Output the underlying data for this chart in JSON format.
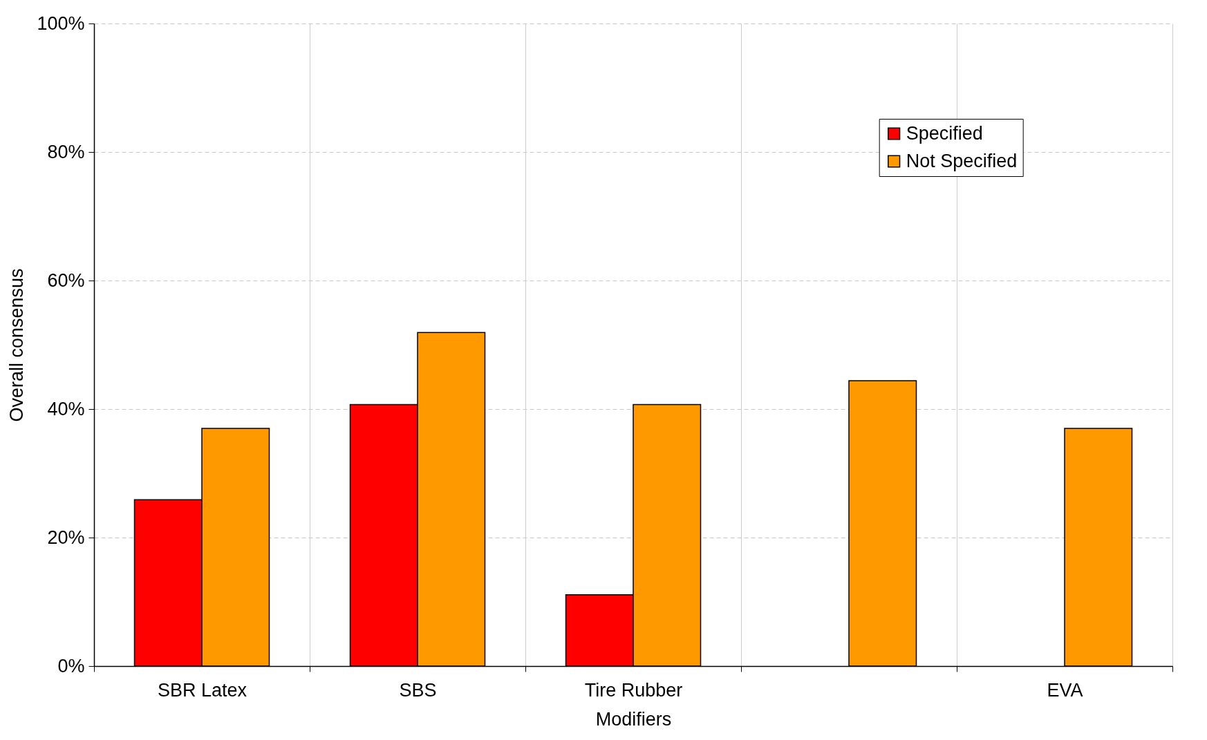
{
  "chart_data": {
    "type": "bar",
    "xlabel": "Modifiers",
    "ylabel": "Overall consensus",
    "categories": [
      "SBR Latex",
      "SBS",
      "Tire Rubber",
      null,
      "EVA"
    ],
    "series": [
      {
        "name": "Specified",
        "color": "#ff0000",
        "values": [
          25.9,
          40.7,
          11.1,
          null,
          null
        ]
      },
      {
        "name": "Not Specified",
        "color": "#ff9900",
        "values": [
          37.0,
          51.9,
          40.7,
          44.4,
          37.0
        ]
      }
    ],
    "ylim": [
      0,
      100
    ],
    "yticks": [
      {
        "value": 0,
        "label": "0%"
      },
      {
        "value": 20,
        "label": "20%"
      },
      {
        "value": 40,
        "label": "40%"
      },
      {
        "value": 60,
        "label": "60%"
      },
      {
        "value": 80,
        "label": "80%"
      },
      {
        "value": 100,
        "label": "100%"
      }
    ],
    "grid": true,
    "legend": "top right"
  }
}
